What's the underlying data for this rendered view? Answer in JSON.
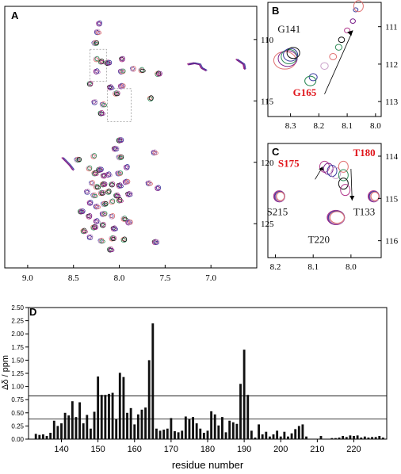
{
  "colors": {
    "spectrum": [
      "#b23a8e",
      "#7a1f8a",
      "#3b3b9e",
      "#c9a0c9",
      "#e07070",
      "#2e8b57",
      "#111111"
    ],
    "residue_highlight": "#e0151b",
    "bar": "#111111"
  },
  "chart_data": [
    {
      "panel": "A",
      "type": "scatter",
      "label": "A",
      "x_ticks": [
        "9.0",
        "8.5",
        "8.0",
        "7.5",
        "7.0"
      ],
      "y_ticks": [
        "110",
        "115",
        "120",
        "125"
      ],
      "xlim": [
        9.25,
        6.5
      ],
      "ylim": [
        107.3,
        128.6
      ],
      "peaks": [
        [
          8.22,
          108.7
        ],
        [
          8.24,
          109.4
        ],
        [
          8.27,
          110.3
        ],
        [
          8.25,
          111.6
        ],
        [
          8.2,
          111.8
        ],
        [
          8.13,
          111.9
        ],
        [
          7.97,
          111.6
        ],
        [
          8.25,
          112.6
        ],
        [
          7.98,
          112.6
        ],
        [
          7.85,
          112.4
        ],
        [
          7.76,
          112.5
        ],
        [
          7.58,
          112.8
        ],
        [
          8.32,
          113.6
        ],
        [
          8.1,
          113.9
        ],
        [
          7.98,
          113.8
        ],
        [
          8.27,
          115.1
        ],
        [
          8.18,
          115.3
        ],
        [
          8.04,
          114.4
        ],
        [
          7.66,
          114.8
        ],
        [
          8.2,
          116.0
        ],
        [
          8.05,
          118.9
        ],
        [
          7.92,
          120.4
        ],
        [
          7.62,
          119.2
        ],
        [
          8.46,
          119.8
        ],
        [
          8.33,
          120.5
        ],
        [
          8.27,
          120.9
        ],
        [
          8.22,
          120.6
        ],
        [
          8.17,
          121.1
        ],
        [
          8.12,
          121.0
        ],
        [
          8.01,
          120.9
        ],
        [
          8.3,
          121.7
        ],
        [
          8.25,
          122.0
        ],
        [
          8.18,
          121.8
        ],
        [
          8.08,
          121.8
        ],
        [
          8.0,
          121.9
        ],
        [
          7.93,
          121.6
        ],
        [
          8.35,
          122.4
        ],
        [
          8.28,
          122.7
        ],
        [
          8.2,
          122.5
        ],
        [
          8.12,
          122.4
        ],
        [
          8.03,
          122.7
        ],
        [
          7.9,
          122.6
        ],
        [
          8.32,
          123.3
        ],
        [
          8.25,
          123.6
        ],
        [
          8.17,
          123.4
        ],
        [
          8.08,
          123.2
        ],
        [
          8.0,
          123.1
        ],
        [
          8.42,
          124.0
        ],
        [
          8.33,
          124.4
        ],
        [
          8.25,
          124.8
        ],
        [
          8.18,
          124.2
        ],
        [
          8.08,
          124.4
        ],
        [
          7.95,
          124.6
        ],
        [
          8.28,
          125.3
        ],
        [
          8.18,
          125.1
        ],
        [
          8.06,
          125.4
        ],
        [
          7.9,
          124.9
        ],
        [
          8.32,
          126.1
        ],
        [
          8.2,
          126.4
        ],
        [
          8.08,
          126.2
        ],
        [
          7.95,
          126.3
        ],
        [
          8.1,
          127.1
        ],
        [
          7.61,
          126.5
        ],
        [
          7.58,
          122.1
        ],
        [
          7.68,
          121.7
        ],
        [
          8.0,
          119.6
        ],
        [
          8.28,
          119.5
        ],
        [
          8.39,
          125.6
        ],
        [
          8.0,
          118.2
        ]
      ],
      "streaks": [
        [
          [
            7.25,
            112.0
          ],
          [
            7.18,
            111.9
          ],
          [
            7.12,
            112.0
          ],
          [
            7.1,
            112.3
          ],
          [
            7.05,
            112.5
          ]
        ],
        [
          [
            6.72,
            111.6
          ],
          [
            6.68,
            111.8
          ],
          [
            6.64,
            112.0
          ],
          [
            6.63,
            112.4
          ]
        ],
        [
          [
            8.62,
            119.6
          ],
          [
            8.58,
            119.9
          ],
          [
            8.54,
            120.2
          ],
          [
            8.5,
            120.6
          ]
        ]
      ],
      "boxes": [
        {
          "x": [
            8.32,
            8.14
          ],
          "y": [
            110.8,
            113.4
          ]
        },
        {
          "x": [
            8.13,
            7.87
          ],
          "y": [
            114.0,
            116.7
          ]
        }
      ]
    },
    {
      "panel": "B",
      "type": "scatter",
      "label": "B",
      "x_ticks": [
        "8.3",
        "8.2",
        "8.1",
        "8.0"
      ],
      "y_ticks": [
        "111",
        "112",
        "113"
      ],
      "xlim": [
        8.38,
        7.98
      ],
      "ylim": [
        110.35,
        113.4
      ],
      "annotations": [
        {
          "text": "G141",
          "x": 8.305,
          "y": 111.15,
          "highlight": false
        },
        {
          "text": "G165",
          "x": 8.25,
          "y": 112.85,
          "highlight": true
        }
      ],
      "trajectory": [
        [
          8.22,
          112.35
        ],
        [
          8.18,
          112.05
        ],
        [
          8.15,
          111.8
        ],
        [
          8.13,
          111.55
        ],
        [
          8.12,
          111.35
        ],
        [
          8.1,
          111.1
        ],
        [
          8.08,
          110.85
        ],
        [
          8.07,
          110.55
        ]
      ],
      "arrow": {
        "from": [
          8.18,
          112.8
        ],
        "to": [
          8.08,
          111.1
        ]
      }
    },
    {
      "panel": "C",
      "type": "scatter",
      "label": "C",
      "x_ticks": [
        "8.2",
        "8.1",
        "8.0"
      ],
      "y_ticks": [
        "114",
        "115",
        "116"
      ],
      "xlim": [
        8.22,
        7.92
      ],
      "ylim": [
        113.7,
        116.4
      ],
      "annotations": [
        {
          "text": "S175",
          "x": 8.165,
          "y": 114.25,
          "highlight": true
        },
        {
          "text": "T180",
          "x": 7.965,
          "y": 114.0,
          "highlight": true
        },
        {
          "text": "S215",
          "x": 8.195,
          "y": 115.4,
          "highlight": false
        },
        {
          "text": "T133",
          "x": 7.965,
          "y": 115.4,
          "highlight": false
        },
        {
          "text": "T220",
          "x": 8.085,
          "y": 116.05,
          "highlight": false
        }
      ],
      "peaks": [
        [
          8.19,
          114.95
        ],
        [
          7.94,
          114.95
        ],
        [
          8.04,
          115.45
        ]
      ],
      "cluster_a": [
        [
          8.07,
          114.25
        ],
        [
          8.06,
          114.3
        ],
        [
          8.05,
          114.35
        ],
        [
          8.04,
          114.4
        ]
      ],
      "cluster_b": [
        [
          8.02,
          114.25
        ],
        [
          8.02,
          114.45
        ],
        [
          8.02,
          114.65
        ],
        [
          8.015,
          114.8
        ]
      ]
    },
    {
      "panel": "D",
      "type": "bar",
      "label": "D",
      "xlabel": "residue number",
      "ylabel": "Δδ / ppm",
      "xlim": [
        131,
        229
      ],
      "ylim": [
        0,
        2.5
      ],
      "x_ticks": [
        "140",
        "150",
        "160",
        "170",
        "180",
        "190",
        "200",
        "210",
        "220"
      ],
      "y_ticks": [
        "0.00",
        "0.25",
        "0.50",
        "0.75",
        "1.00",
        "1.25",
        "1.50",
        "1.75",
        "2.00",
        "2.25",
        "2.50"
      ],
      "thresholds": [
        0.82,
        0.38
      ],
      "x": [
        133,
        134,
        135,
        136,
        137,
        138,
        139,
        140,
        141,
        142,
        143,
        144,
        145,
        146,
        147,
        148,
        149,
        150,
        151,
        152,
        153,
        154,
        155,
        156,
        157,
        158,
        159,
        160,
        161,
        162,
        163,
        164,
        165,
        166,
        167,
        168,
        169,
        170,
        171,
        172,
        173,
        174,
        175,
        176,
        177,
        178,
        179,
        180,
        181,
        182,
        183,
        184,
        185,
        186,
        187,
        188,
        189,
        190,
        191,
        192,
        193,
        194,
        195,
        196,
        197,
        198,
        199,
        200,
        201,
        202,
        203,
        204,
        205,
        206,
        207,
        208,
        209,
        210,
        211,
        212,
        213,
        214,
        215,
        216,
        217,
        218,
        219,
        220,
        221,
        222,
        223,
        224,
        225,
        226,
        227,
        228
      ],
      "values": [
        0.1,
        0.08,
        0.09,
        0.06,
        0.12,
        0.35,
        0.25,
        0.3,
        0.5,
        0.45,
        0.72,
        0.42,
        0.7,
        0.3,
        0.46,
        0.2,
        0.52,
        1.19,
        0.84,
        0.84,
        0.86,
        0.88,
        0.38,
        1.26,
        1.18,
        0.5,
        0.59,
        0.28,
        0.47,
        0.56,
        0.6,
        1.5,
        2.2,
        0.2,
        0.16,
        0.18,
        0.2,
        0.4,
        0.15,
        0.13,
        0.16,
        0.43,
        0.38,
        0.42,
        0.3,
        0.2,
        0.12,
        0.16,
        0.53,
        0.47,
        0.26,
        0.42,
        0.13,
        0.35,
        0.32,
        0.29,
        1.05,
        1.7,
        0.84,
        0.16,
        0.03,
        0.28,
        0.09,
        0.14,
        0.05,
        0.09,
        0.16,
        0.05,
        0.14,
        0.05,
        0.11,
        0.19,
        0.25,
        0.28,
        0.05,
        0,
        0,
        0,
        0.06,
        0,
        0,
        0.02,
        0.02,
        0.03,
        0.06,
        0.04,
        0.07,
        0.06,
        0.07,
        0.03,
        0.05,
        0.03,
        0.04,
        0.04,
        0.06,
        0.03
      ]
    }
  ]
}
